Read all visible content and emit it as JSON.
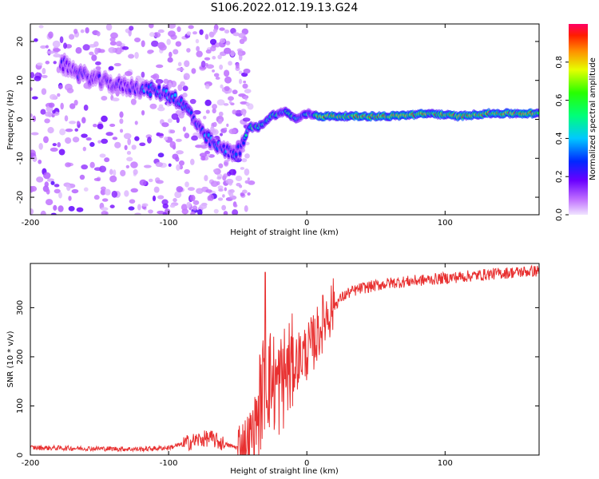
{
  "title": "S106.2022.012.19.13.G24",
  "chart_data": [
    {
      "type": "heatmap",
      "xlabel": "Height of straight line (km)",
      "ylabel": "Frequency (Hz)",
      "xlim": [
        -200,
        168
      ],
      "ylim": [
        -24.5,
        24.5
      ],
      "xticks": [
        -200,
        -100,
        0,
        100
      ],
      "yticks": [
        -20,
        -10,
        0,
        10,
        20
      ],
      "colorbar": {
        "label": "Normalized spectral amplitude",
        "range": [
          0,
          1
        ],
        "ticks": [
          "0.0",
          "0.2",
          "0.4",
          "0.6",
          "0.8"
        ],
        "colormap": "hsv (violet → blue → cyan → green → yellow → red)"
      },
      "ridge": {
        "x": [
          -175,
          -160,
          -140,
          -120,
          -105,
          -95,
          -85,
          -75,
          -65,
          -55,
          -48,
          -42,
          -35,
          -25,
          -15,
          -8,
          0,
          10,
          30,
          60,
          90,
          110,
          130,
          168
        ],
        "y": [
          14,
          11,
          9,
          8,
          7,
          5.5,
          2,
          -4,
          -7,
          -8.5,
          -8,
          -2,
          -2,
          1,
          2,
          0,
          1.5,
          0.8,
          0.8,
          0.8,
          1.5,
          0.8,
          1.5,
          1.5
        ]
      }
    },
    {
      "type": "line",
      "xlabel": "Height of straight line (km)",
      "ylabel": "SNR (10 * v/v)",
      "xlim": [
        -200,
        168
      ],
      "ylim": [
        0,
        390
      ],
      "xticks": [
        -200,
        -100,
        0,
        100
      ],
      "yticks": [
        0,
        100,
        200,
        300
      ],
      "color": "#e83030",
      "trend": {
        "x": [
          -200,
          -120,
          -100,
          -90,
          -80,
          -70,
          -60,
          -50,
          -45,
          -40,
          -35,
          -30,
          -25,
          -20,
          -15,
          -10,
          -5,
          0,
          5,
          10,
          15,
          20,
          25,
          30,
          40,
          50,
          60,
          80,
          100,
          120,
          140,
          168
        ],
        "y": [
          15,
          12,
          15,
          22,
          30,
          35,
          22,
          15,
          20,
          40,
          90,
          160,
          150,
          140,
          170,
          180,
          200,
          210,
          230,
          260,
          290,
          305,
          320,
          330,
          340,
          345,
          350,
          355,
          360,
          365,
          370,
          375
        ]
      },
      "peak": {
        "x": -30,
        "y": 372
      }
    }
  ]
}
